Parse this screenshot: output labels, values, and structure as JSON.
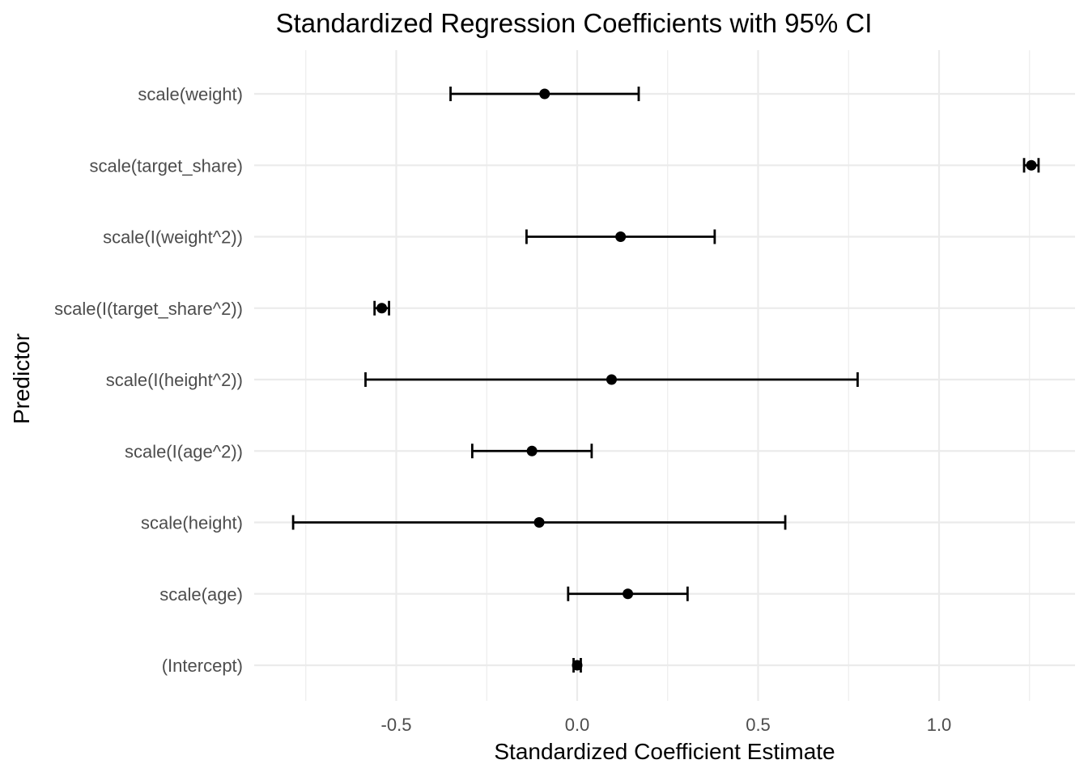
{
  "chart_data": {
    "type": "scatter",
    "subtype": "coefficient-plot-with-error-bars",
    "title": "Standardized Regression Coefficients with 95% CI",
    "xlabel": "Standardized Coefficient Estimate",
    "ylabel": "Predictor",
    "xlim": [
      -0.88,
      1.32
    ],
    "x_ticks": [
      {
        "value": -0.5,
        "label": "-0.5"
      },
      {
        "value": 0.0,
        "label": "0.0"
      },
      {
        "value": 0.5,
        "label": "0.5"
      },
      {
        "value": 1.0,
        "label": "1.0"
      }
    ],
    "x_minor_ticks": [
      -0.75,
      -0.25,
      0.25,
      0.75,
      1.25
    ],
    "grid": true,
    "legend": "none",
    "predictors": [
      {
        "name": "scale(weight)",
        "estimate": -0.09,
        "ci_low": -0.35,
        "ci_high": 0.17
      },
      {
        "name": "scale(target_share)",
        "estimate": 1.255,
        "ci_low": 1.235,
        "ci_high": 1.275
      },
      {
        "name": "scale(I(weight^2))",
        "estimate": 0.12,
        "ci_low": -0.14,
        "ci_high": 0.38
      },
      {
        "name": "scale(I(target_share^2))",
        "estimate": -0.54,
        "ci_low": -0.56,
        "ci_high": -0.52
      },
      {
        "name": "scale(I(height^2))",
        "estimate": 0.095,
        "ci_low": -0.585,
        "ci_high": 0.775
      },
      {
        "name": "scale(I(age^2))",
        "estimate": -0.125,
        "ci_low": -0.29,
        "ci_high": 0.04
      },
      {
        "name": "scale(height)",
        "estimate": -0.105,
        "ci_low": -0.785,
        "ci_high": 0.575
      },
      {
        "name": "scale(age)",
        "estimate": 0.14,
        "ci_low": -0.025,
        "ci_high": 0.305
      },
      {
        "name": "(Intercept)",
        "estimate": 0.0,
        "ci_low": -0.01,
        "ci_high": 0.01
      }
    ]
  }
}
